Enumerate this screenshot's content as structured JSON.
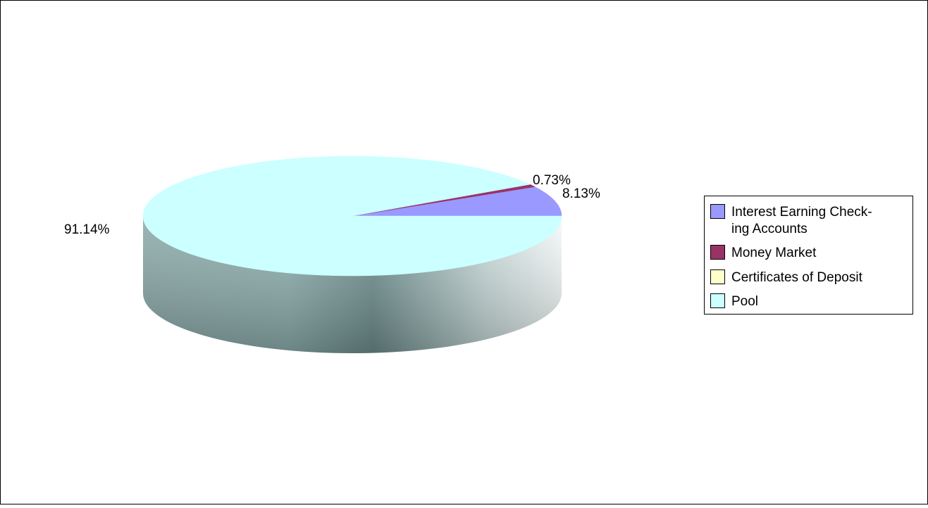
{
  "chart_data": {
    "type": "pie",
    "title": "",
    "style": "3d",
    "legend_position": "right",
    "categories": [
      "Interest Earning Checking Accounts",
      "Money Market",
      "Certificates of Deposit",
      "Pool"
    ],
    "legend_labels": [
      [
        "Interest Earning Check-",
        "ing Accounts"
      ],
      [
        "Money Market"
      ],
      [
        "Certificates of Deposit"
      ],
      [
        "Pool"
      ]
    ],
    "values": [
      8.13,
      0.73,
      0.0,
      91.14
    ],
    "value_labels": [
      "8.13%",
      "0.73%",
      "",
      "91.14%"
    ],
    "colors": [
      "#9999ff",
      "#993366",
      "#ffffcc",
      "#ccffff"
    ],
    "side_colors": [
      "#6f6fb8",
      "#6b2447",
      "#c8c8a0",
      "#8fb5b5"
    ]
  }
}
